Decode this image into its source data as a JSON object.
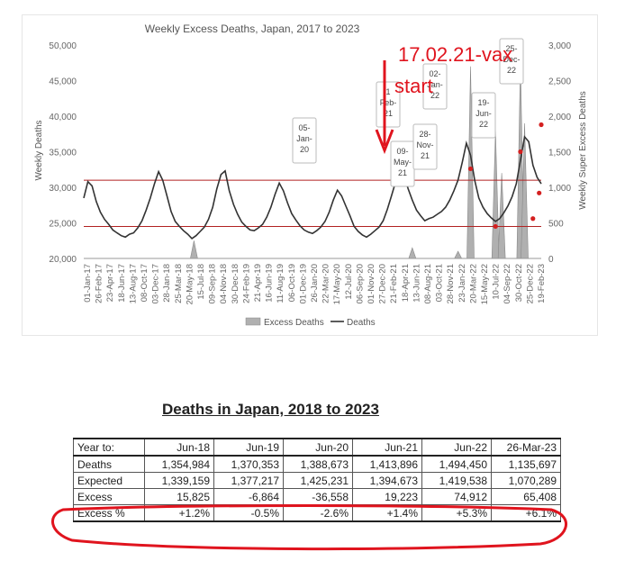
{
  "chart_data": {
    "type": "line",
    "title": "Weekly Excess Deaths, Japan, 2017 to 2023",
    "ylabel": "Weekly Deaths",
    "y2label": "Weekly Super Excess Deaths",
    "ylim": [
      20000,
      50000
    ],
    "y2lim": [
      0,
      3000
    ],
    "yticks": [
      "20,000",
      "25,000",
      "30,000",
      "35,000",
      "40,000",
      "45,000",
      "50,000"
    ],
    "y2ticks": [
      "0",
      "500",
      "1,000",
      "1,500",
      "2,000",
      "2,500",
      "3,000"
    ],
    "xticks": [
      "01-Jan-17",
      "26-Feb-17",
      "23-Apr-17",
      "18-Jun-17",
      "13-Aug-17",
      "08-Oct-17",
      "03-Dec-17",
      "28-Jan-18",
      "25-Mar-18",
      "20-May-18",
      "15-Jul-18",
      "09-Sep-18",
      "04-Nov-18",
      "30-Dec-18",
      "24-Feb-19",
      "21-Apr-19",
      "16-Jun-19",
      "11-Aug-19",
      "06-Oct-19",
      "01-Dec-19",
      "26-Jan-20",
      "22-Mar-20",
      "17-May-20",
      "12-Jul-20",
      "06-Sep-20",
      "01-Nov-20",
      "27-Dec-20",
      "21-Feb-21",
      "18-Apr-21",
      "13-Jun-21",
      "08-Aug-21",
      "03-Oct-21",
      "28-Nov-21",
      "23-Jan-22",
      "20-Mar-22",
      "15-May-22",
      "10-Jul-22",
      "04-Sep-22",
      "30-Oct-22",
      "25-Dec-22",
      "19-Feb-23"
    ],
    "legend": [
      "Excess Deaths",
      "Deaths"
    ],
    "legend_position": "bottom",
    "deaths_series": [
      [
        0,
        28500
      ],
      [
        2,
        30800
      ],
      [
        4,
        30200
      ],
      [
        6,
        28000
      ],
      [
        8,
        26500
      ],
      [
        10,
        25500
      ],
      [
        12,
        24800
      ],
      [
        14,
        24000
      ],
      [
        16,
        23600
      ],
      [
        18,
        23200
      ],
      [
        20,
        23000
      ],
      [
        22,
        23400
      ],
      [
        24,
        23600
      ],
      [
        26,
        24300
      ],
      [
        28,
        25300
      ],
      [
        30,
        26800
      ],
      [
        32,
        28500
      ],
      [
        34,
        30500
      ],
      [
        36,
        32200
      ],
      [
        38,
        31000
      ],
      [
        40,
        28800
      ],
      [
        42,
        26600
      ],
      [
        44,
        25200
      ],
      [
        46,
        24500
      ],
      [
        48,
        23900
      ],
      [
        50,
        23400
      ],
      [
        52,
        22800
      ],
      [
        54,
        23200
      ],
      [
        56,
        23800
      ],
      [
        58,
        24400
      ],
      [
        60,
        25500
      ],
      [
        62,
        27200
      ],
      [
        64,
        29800
      ],
      [
        66,
        31800
      ],
      [
        68,
        32300
      ],
      [
        70,
        29500
      ],
      [
        72,
        27600
      ],
      [
        74,
        26200
      ],
      [
        76,
        25100
      ],
      [
        78,
        24500
      ],
      [
        80,
        24000
      ],
      [
        82,
        23900
      ],
      [
        84,
        24300
      ],
      [
        86,
        24800
      ],
      [
        88,
        25800
      ],
      [
        90,
        27200
      ],
      [
        92,
        29000
      ],
      [
        94,
        30600
      ],
      [
        96,
        29500
      ],
      [
        98,
        27800
      ],
      [
        100,
        26300
      ],
      [
        102,
        25400
      ],
      [
        104,
        24600
      ],
      [
        106,
        24000
      ],
      [
        108,
        23700
      ],
      [
        110,
        23500
      ],
      [
        112,
        23900
      ],
      [
        114,
        24400
      ],
      [
        116,
        25200
      ],
      [
        118,
        26500
      ],
      [
        120,
        28200
      ],
      [
        122,
        29600
      ],
      [
        124,
        28800
      ],
      [
        126,
        27400
      ],
      [
        128,
        26000
      ],
      [
        130,
        24500
      ],
      [
        132,
        23800
      ],
      [
        134,
        23300
      ],
      [
        136,
        23000
      ],
      [
        138,
        23400
      ],
      [
        140,
        23900
      ],
      [
        142,
        24400
      ],
      [
        144,
        25300
      ],
      [
        146,
        26900
      ],
      [
        148,
        28800
      ],
      [
        150,
        30800
      ],
      [
        152,
        32700
      ],
      [
        154,
        31600
      ],
      [
        156,
        29800
      ],
      [
        158,
        28200
      ],
      [
        160,
        26800
      ],
      [
        162,
        26000
      ],
      [
        164,
        25300
      ],
      [
        166,
        25600
      ],
      [
        168,
        25800
      ],
      [
        170,
        26200
      ],
      [
        172,
        26600
      ],
      [
        174,
        27200
      ],
      [
        176,
        28200
      ],
      [
        178,
        29500
      ],
      [
        180,
        31000
      ],
      [
        182,
        33500
      ],
      [
        184,
        36200
      ],
      [
        186,
        34500
      ],
      [
        188,
        31000
      ],
      [
        190,
        28500
      ],
      [
        192,
        27200
      ],
      [
        194,
        26300
      ],
      [
        196,
        25700
      ],
      [
        198,
        25200
      ],
      [
        200,
        25600
      ],
      [
        202,
        26400
      ],
      [
        204,
        27400
      ],
      [
        206,
        28700
      ],
      [
        208,
        30500
      ],
      [
        210,
        33800
      ],
      [
        212,
        37100
      ],
      [
        214,
        36400
      ],
      [
        216,
        33100
      ],
      [
        218,
        31400
      ],
      [
        220,
        30500
      ]
    ],
    "series_x_note": "x is week index from 01-Jan-17",
    "excess_spikes": [
      [
        53,
        250
      ],
      [
        158,
        150
      ],
      [
        180,
        100
      ],
      [
        186,
        2700
      ],
      [
        198,
        1800
      ],
      [
        201,
        1200
      ],
      [
        210,
        2800
      ],
      [
        212,
        1900
      ]
    ],
    "reference_lines_y": [
      31000,
      24500
    ],
    "annotations": [
      {
        "label": "05-Jan-20",
        "lines": [
          "05-",
          "Jan-",
          "20"
        ]
      },
      {
        "label": "17-Feb-21",
        "lines": [
          "1",
          "Feb-",
          "21"
        ]
      },
      {
        "label": "09-May-21",
        "lines": [
          "09-",
          "May-",
          "21"
        ]
      },
      {
        "label": "02-Jan-22",
        "lines": [
          "02-",
          "Jan-",
          "22"
        ]
      },
      {
        "label": "28-Nov-21",
        "lines": [
          "28-",
          "Nov-",
          "21"
        ]
      },
      {
        "label": "19-Jun-22",
        "lines": [
          "19-",
          "Jun-",
          "22"
        ]
      },
      {
        "label": "25-Dec-22",
        "lines": [
          "25-",
          "Dec-",
          "22"
        ]
      }
    ],
    "overlay_text": [
      "17.02.21-vax",
      "start"
    ]
  },
  "table": {
    "title": "Deaths in Japan, 2018 to 2023",
    "headers": [
      "Year to:",
      "Jun-18",
      "Jun-19",
      "Jun-20",
      "Jun-21",
      "Jun-22",
      "26-Mar-23"
    ],
    "rows": [
      [
        "Deaths",
        "1,354,984",
        "1,370,353",
        "1,388,673",
        "1,413,896",
        "1,494,450",
        "1,135,697"
      ],
      [
        "Expected",
        "1,339,159",
        "1,377,217",
        "1,425,231",
        "1,394,673",
        "1,419,538",
        "1,070,289"
      ],
      [
        "Excess",
        "15,825",
        "-6,864",
        "-36,558",
        "19,223",
        "74,912",
        "65,408"
      ],
      [
        "Excess %",
        "+1.2%",
        "-0.5%",
        "-2.6%",
        "+1.4%",
        "+5.3%",
        "+6.1%"
      ]
    ]
  },
  "colors": {
    "line": "#333333",
    "excess_fill": "#b0b0b0",
    "reference": "#b22222",
    "overlay": "#e0141e"
  }
}
